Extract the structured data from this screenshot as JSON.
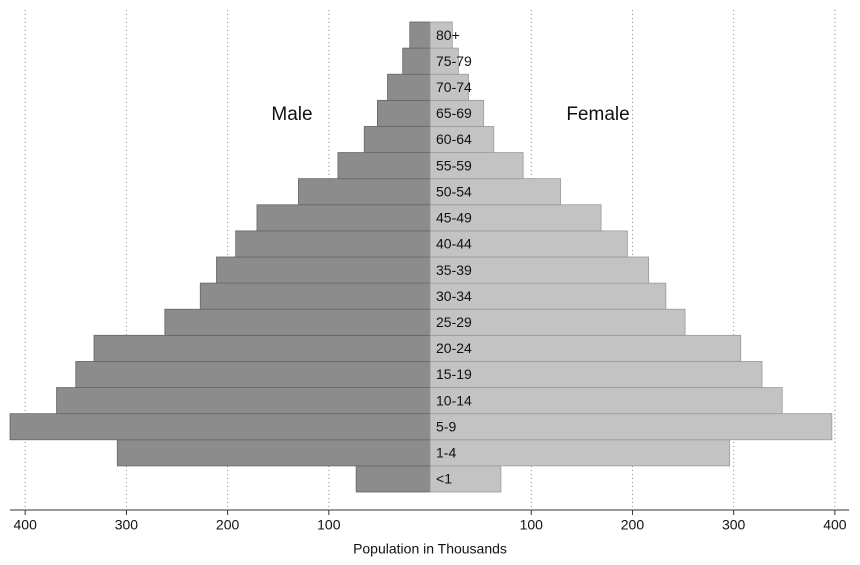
{
  "chart_data": {
    "type": "pyramid",
    "x_label": "Population in Thousands",
    "categories": [
      "<1",
      "1-4",
      "5-9",
      "10-14",
      "15-19",
      "20-24",
      "25-29",
      "30-34",
      "35-39",
      "40-44",
      "45-49",
      "50-54",
      "55-59",
      "60-64",
      "65-69",
      "70-74",
      "75-79",
      "80+"
    ],
    "series": [
      {
        "name": "Male",
        "color": "#8c8c8c",
        "values": [
          73,
          309,
          415,
          369,
          350,
          332,
          262,
          227,
          211,
          192,
          171,
          130,
          91,
          65,
          52,
          42,
          27,
          20
        ]
      },
      {
        "name": "Female",
        "color": "#c3c3c3",
        "values": [
          70,
          296,
          397,
          348,
          328,
          307,
          252,
          233,
          216,
          195,
          169,
          129,
          92,
          63,
          53,
          38,
          28,
          22
        ]
      }
    ],
    "xlim": [
      -415,
      410
    ],
    "xticks": [
      {
        "value": -400,
        "label": "400"
      },
      {
        "value": -300,
        "label": "300"
      },
      {
        "value": -200,
        "label": "200"
      },
      {
        "value": -100,
        "label": "100"
      },
      100,
      200,
      300,
      400
    ],
    "grid": true
  }
}
